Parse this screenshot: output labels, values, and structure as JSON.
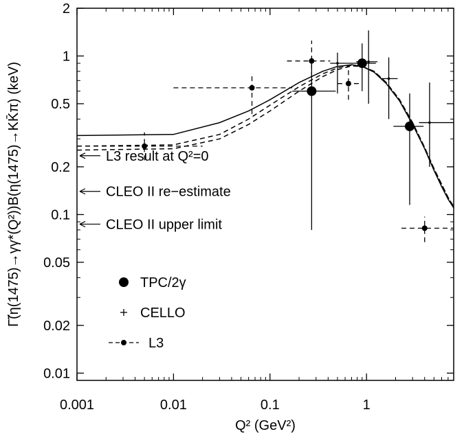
{
  "chart_data": {
    "type": "scatter",
    "xlabel": "Q² (GeV²)",
    "ylabel": "Γ̃(η(1475)→γγ*(Q²))B(η(1475)→KK̄π)  (keV)",
    "xscale": "log",
    "yscale": "log",
    "xlim": [
      0.001,
      8
    ],
    "ylim": [
      0.009,
      2
    ],
    "x_ticks": [
      {
        "value": 0.001,
        "label": "0.001"
      },
      {
        "value": 0.01,
        "label": "0.01"
      },
      {
        "value": 0.1,
        "label": "0.1"
      },
      {
        "value": 1,
        "label": "1"
      }
    ],
    "y_ticks": [
      {
        "value": 0.01,
        "label": "0.01"
      },
      {
        "value": 0.02,
        "label": "0.02"
      },
      {
        "value": 0.05,
        "label": "0.05"
      },
      {
        "value": 0.1,
        "label": "0.1"
      },
      {
        "value": 0.2,
        "label": "0.2"
      },
      {
        "value": 0.5,
        "label": "0.5"
      },
      {
        "value": 1,
        "label": "1"
      },
      {
        "value": 2,
        "label": "2"
      }
    ],
    "series": [
      {
        "name": "TPC/2γ",
        "marker": "large-dot",
        "points": [
          {
            "x": 0.27,
            "y": 0.6,
            "xlo": 0.17,
            "xhi": 0.48,
            "ylo": 0.08,
            "yhi": 0.9
          },
          {
            "x": 0.9,
            "y": 0.9,
            "xlo": 0.6,
            "xhi": 1.25,
            "ylo": 0.6,
            "yhi": 1.2
          },
          {
            "x": 2.8,
            "y": 0.36,
            "xlo": 1.9,
            "xhi": 3.9,
            "ylo": 0.115,
            "yhi": 0.58
          }
        ]
      },
      {
        "name": "CELLO",
        "marker": "plus",
        "points": [
          {
            "x": 0.5,
            "y": 0.9,
            "xlo": 0.42,
            "xhi": 0.6,
            "ylo": 0.58,
            "yhi": 1.05
          },
          {
            "x": 1.05,
            "y": 0.92,
            "xlo": 0.78,
            "xhi": 1.3,
            "ylo": 0.5,
            "yhi": 1.45
          },
          {
            "x": 1.7,
            "y": 0.72,
            "xlo": 1.4,
            "xhi": 2.1,
            "ylo": 0.4,
            "yhi": 0.98
          },
          {
            "x": 4.5,
            "y": 0.38,
            "xlo": 3.5,
            "xhi": 8,
            "ylo": 0.2,
            "yhi": 0.68
          }
        ]
      },
      {
        "name": "L3",
        "marker": "dot-dashed",
        "points": [
          {
            "x": 0.005,
            "y": 0.27,
            "xlo": 0.0009,
            "xhi": 0.02,
            "ylo": 0.22,
            "yhi": 0.33
          },
          {
            "x": 0.065,
            "y": 0.63,
            "xlo": 0.01,
            "xhi": 0.17,
            "ylo": 0.43,
            "yhi": 0.78
          },
          {
            "x": 0.27,
            "y": 0.93,
            "xlo": 0.15,
            "xhi": 0.42,
            "ylo": 0.58,
            "yhi": 1.25
          },
          {
            "x": 0.65,
            "y": 0.67,
            "xlo": 0.5,
            "xhi": 0.85,
            "ylo": 0.53,
            "yhi": 0.82
          },
          {
            "x": 4.0,
            "y": 0.082,
            "xlo": 2.3,
            "xhi": 8,
            "ylo": 0.067,
            "yhi": 0.097
          }
        ]
      }
    ],
    "curves": [
      {
        "style": "solid",
        "points": [
          [
            0.00085,
            0.315
          ],
          [
            0.01,
            0.32
          ],
          [
            0.03,
            0.38
          ],
          [
            0.06,
            0.45
          ],
          [
            0.1,
            0.53
          ],
          [
            0.2,
            0.68
          ],
          [
            0.35,
            0.8
          ],
          [
            0.5,
            0.86
          ],
          [
            0.7,
            0.88
          ],
          [
            0.9,
            0.86
          ],
          [
            1.2,
            0.79
          ],
          [
            1.6,
            0.67
          ],
          [
            2.2,
            0.52
          ],
          [
            3.0,
            0.37
          ],
          [
            4.0,
            0.26
          ],
          [
            5.0,
            0.19
          ],
          [
            6.0,
            0.15
          ],
          [
            7.0,
            0.125
          ],
          [
            8.0,
            0.11
          ]
        ]
      },
      {
        "style": "dashed",
        "points": [
          [
            0.00085,
            0.27
          ],
          [
            0.01,
            0.275
          ],
          [
            0.03,
            0.32
          ],
          [
            0.06,
            0.4
          ],
          [
            0.1,
            0.49
          ],
          [
            0.2,
            0.64
          ],
          [
            0.35,
            0.77
          ],
          [
            0.5,
            0.84
          ],
          [
            0.7,
            0.875
          ],
          [
            0.9,
            0.86
          ],
          [
            1.2,
            0.8
          ],
          [
            1.6,
            0.68
          ],
          [
            2.2,
            0.53
          ],
          [
            3.0,
            0.38
          ],
          [
            4.0,
            0.265
          ],
          [
            5.0,
            0.195
          ],
          [
            6.0,
            0.155
          ],
          [
            7.0,
            0.128
          ],
          [
            8.0,
            0.112
          ]
        ]
      },
      {
        "style": "dashed",
        "points": [
          [
            0.00085,
            0.255
          ],
          [
            0.01,
            0.26
          ],
          [
            0.03,
            0.3
          ],
          [
            0.06,
            0.37
          ],
          [
            0.1,
            0.45
          ],
          [
            0.2,
            0.6
          ],
          [
            0.35,
            0.74
          ],
          [
            0.5,
            0.82
          ],
          [
            0.7,
            0.865
          ],
          [
            0.9,
            0.86
          ],
          [
            1.2,
            0.8
          ],
          [
            1.6,
            0.68
          ],
          [
            2.2,
            0.53
          ],
          [
            3.0,
            0.38
          ],
          [
            4.0,
            0.265
          ],
          [
            5.0,
            0.195
          ],
          [
            6.0,
            0.155
          ],
          [
            7.0,
            0.128
          ],
          [
            8.0,
            0.112
          ]
        ]
      }
    ],
    "annotations": [
      {
        "text": "L3 result  at  Q²=0",
        "y": 0.235
      },
      {
        "text": "CLEO II re−estimate",
        "y": 0.14
      },
      {
        "text": "CLEO II upper limit",
        "y": 0.087
      }
    ],
    "legend": {
      "placement": "lower-left",
      "entries": [
        {
          "label": "TPC/2γ",
          "marker": "large-dot"
        },
        {
          "label": "CELLO",
          "marker": "plus"
        },
        {
          "label": "L3",
          "marker": "dot-dashed"
        }
      ]
    },
    "grid": false
  }
}
